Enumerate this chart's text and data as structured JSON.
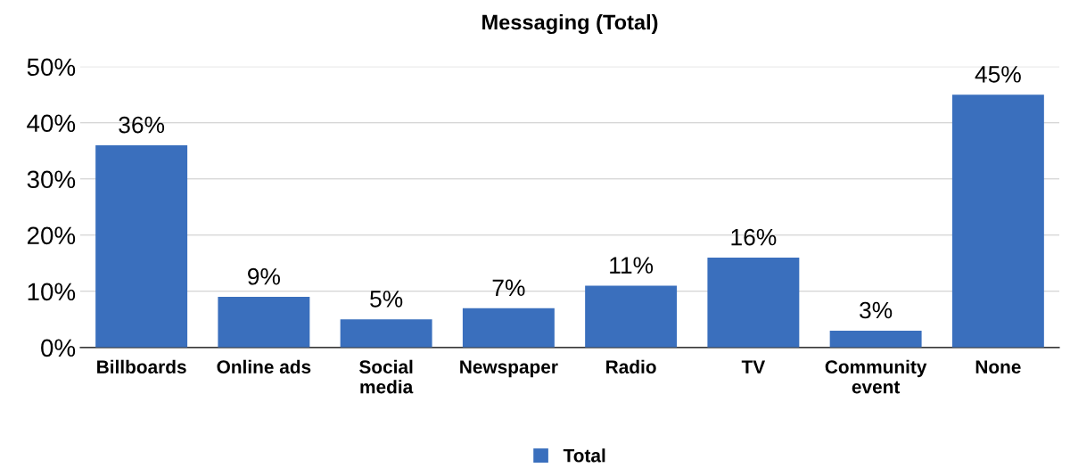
{
  "chart_data": {
    "type": "bar",
    "title": "Messaging (Total)",
    "categories": [
      "Billboards",
      "Online ads",
      "Social\nmedia",
      "Newspaper",
      "Radio",
      "TV",
      "Community\nevent",
      "None"
    ],
    "series": [
      {
        "name": "Total",
        "color": "#3a6fbd",
        "values": [
          36,
          9,
          5,
          7,
          11,
          16,
          3,
          45
        ],
        "value_labels": [
          "36%",
          "9%",
          "5%",
          "7%",
          "11%",
          "16%",
          "3%",
          "45%"
        ]
      }
    ],
    "ylim": [
      0,
      50
    ],
    "yticks": [
      {
        "value": 0,
        "label": "0%"
      },
      {
        "value": 10,
        "label": "10%"
      },
      {
        "value": 20,
        "label": "20%"
      },
      {
        "value": 30,
        "label": "30%"
      },
      {
        "value": 40,
        "label": "40%"
      },
      {
        "value": 50,
        "label": "50%"
      }
    ],
    "grid": "y",
    "legend": "bottom"
  }
}
